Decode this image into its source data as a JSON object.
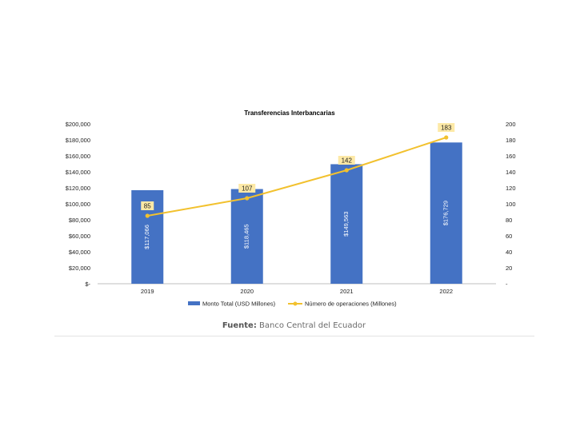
{
  "chart_data": {
    "type": "bar+line",
    "title": "Transferencias  Interbancarias",
    "categories": [
      "2019",
      "2020",
      "2021",
      "2022"
    ],
    "series": [
      {
        "name": "Monto Total (USD Millones)",
        "kind": "bar",
        "axis": "left",
        "color": "#4472c4",
        "values": [
          117066,
          118465,
          149563,
          176729
        ],
        "labels": [
          "$117,066",
          "$118,465",
          "$149,563",
          "$176,729"
        ]
      },
      {
        "name": "Número de operaciones (Millones)",
        "kind": "line",
        "axis": "right",
        "color": "#f2c12e",
        "values": [
          85,
          107,
          142,
          183
        ],
        "labels": [
          "85",
          "107",
          "142",
          "183"
        ]
      }
    ],
    "y_left": {
      "lim": [
        0,
        200000
      ],
      "ticks": [
        0,
        20000,
        40000,
        60000,
        80000,
        100000,
        120000,
        140000,
        160000,
        180000,
        200000
      ],
      "tick_labels": [
        "$-",
        "$20,000",
        "$40,000",
        "$60,000",
        "$80,000",
        "$100,000",
        "$120,000",
        "$140,000",
        "$160,000",
        "$180,000",
        "$200,000"
      ]
    },
    "y_right": {
      "lim": [
        0,
        200
      ],
      "ticks": [
        0,
        20,
        40,
        60,
        80,
        100,
        120,
        140,
        160,
        180,
        200
      ],
      "tick_labels": [
        "-",
        "20",
        "40",
        "60",
        "80",
        "100",
        "120",
        "140",
        "160",
        "180",
        "200"
      ]
    },
    "legend_position": "bottom",
    "grid": false
  },
  "source": {
    "label": "Fuente:",
    "text": "Banco Central del Ecuador"
  }
}
